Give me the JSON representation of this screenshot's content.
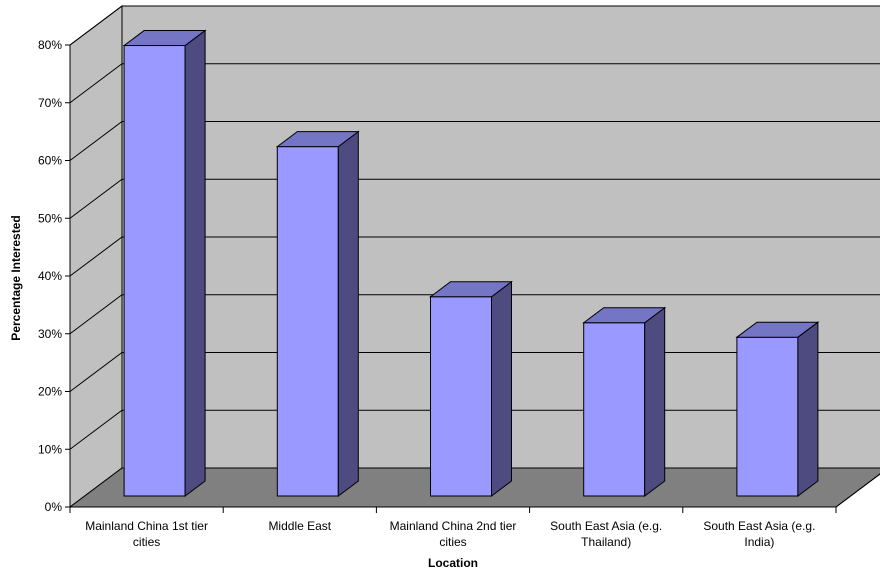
{
  "chart_data": {
    "type": "bar",
    "style": "3d-column",
    "title": "",
    "xlabel": "Location",
    "ylabel": "Percentage Interested",
    "ylim": [
      0,
      80
    ],
    "y_tick_step": 10,
    "y_tick_labels": [
      "0%",
      "10%",
      "20%",
      "30%",
      "40%",
      "50%",
      "60%",
      "70%",
      "80%"
    ],
    "grid": true,
    "legend": "none",
    "categories": [
      [
        "Mainland China 1st tier",
        "cities"
      ],
      [
        "Middle East"
      ],
      [
        "Mainland China 2nd tier",
        "cities"
      ],
      [
        "South East Asia (e.g.",
        "Thailand)"
      ],
      [
        "South East Asia (e.g.",
        "India)"
      ]
    ],
    "values": [
      78,
      60.5,
      34.5,
      30,
      27.5
    ],
    "colors": {
      "bar_front": "#9999ff",
      "bar_side": "#4d4b80",
      "bar_top": "#7575c6",
      "wall": "#c0c0c0",
      "floor": "#808080"
    }
  }
}
